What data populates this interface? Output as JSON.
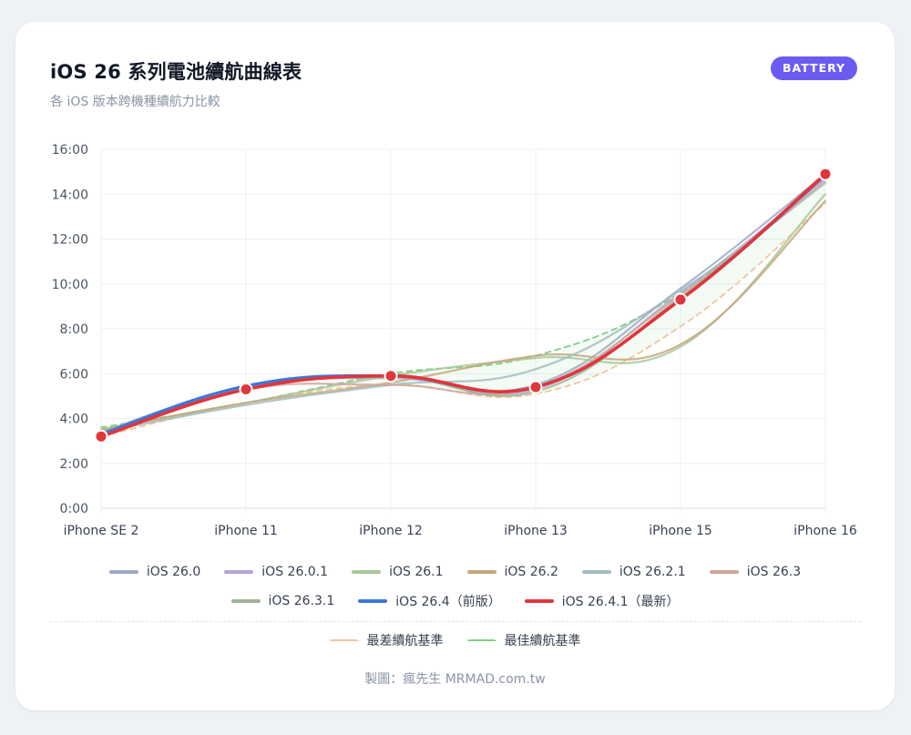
{
  "header": {
    "title": "iOS 26 系列電池續航曲線表",
    "subtitle": "各 iOS 版本跨機種續航力比較",
    "badge": "BATTERY"
  },
  "footer": {
    "credit": "製圖：瘋先生 MRMAD.com.tw"
  },
  "chart_data": {
    "type": "line",
    "categories": [
      "iPhone SE 2",
      "iPhone 11",
      "iPhone 12",
      "iPhone 13",
      "iPhone 15",
      "iPhone 16"
    ],
    "y_unit": "hours",
    "ylim": [
      0,
      16
    ],
    "yticks": [
      0,
      2,
      4,
      6,
      8,
      10,
      12,
      14,
      16
    ],
    "ytick_labels": [
      "0:00",
      "2:00",
      "4:00",
      "6:00",
      "8:00",
      "10:00",
      "12:00",
      "14:00",
      "16:00"
    ],
    "grid": true,
    "legend_placement": "bottom",
    "series": [
      {
        "name": "iOS 26.0",
        "color": "#9aa9c4",
        "values": [
          3.4,
          5.4,
          5.8,
          5.5,
          9.8,
          14.9
        ]
      },
      {
        "name": "iOS 26.0.1",
        "color": "#b8a2d6",
        "values": [
          3.35,
          5.3,
          5.85,
          5.3,
          9.6,
          14.7
        ]
      },
      {
        "name": "iOS 26.1",
        "color": "#a8c89a",
        "values": [
          3.5,
          4.7,
          5.9,
          6.7,
          7.2,
          14.0
        ]
      },
      {
        "name": "iOS 26.2",
        "color": "#c4a77b",
        "values": [
          3.5,
          4.7,
          5.6,
          6.8,
          7.3,
          13.7
        ]
      },
      {
        "name": "iOS 26.2.1",
        "color": "#a3bcbf",
        "values": [
          3.4,
          4.6,
          5.5,
          6.2,
          9.7,
          14.5
        ]
      },
      {
        "name": "iOS 26.3",
        "color": "#cfa89a",
        "values": [
          3.3,
          5.3,
          5.5,
          5.4,
          9.5,
          14.6
        ]
      },
      {
        "name": "iOS 26.3.1",
        "color": "#9fb493",
        "values": [
          3.4,
          5.3,
          5.9,
          5.2,
          9.4,
          14.8
        ]
      },
      {
        "name": "iOS 26.4（前版）",
        "color": "#3b78d8",
        "values": [
          3.3,
          5.45,
          5.9,
          5.4,
          9.3,
          14.85
        ]
      },
      {
        "name": "iOS 26.4.1（最新）",
        "color": "#e0363d",
        "values": [
          3.2,
          5.3,
          5.9,
          5.4,
          9.3,
          14.9
        ],
        "markers": true
      }
    ],
    "baselines": [
      {
        "name": "最差續航基準",
        "color": "#f1c59a",
        "values": [
          3.2,
          4.7,
          5.5,
          5.1,
          8.1,
          13.6
        ]
      },
      {
        "name": "最佳續航基準",
        "color": "#7fcf86",
        "values": [
          3.6,
          4.7,
          6.0,
          6.8,
          9.6,
          14.9
        ]
      }
    ]
  }
}
